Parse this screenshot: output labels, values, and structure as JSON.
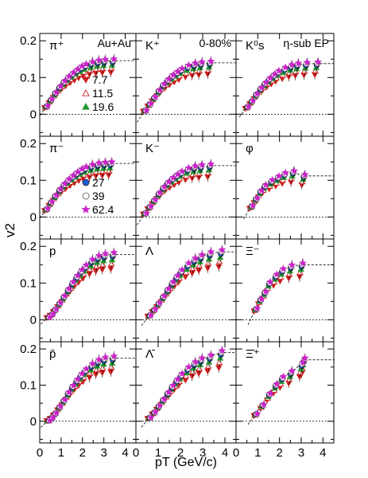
{
  "chart_data": {
    "type": "scatter",
    "ylabel": "v2",
    "xlabel": "pT (GeV/c)",
    "xlim": [
      0,
      4.5
    ],
    "ylim": [
      -0.06,
      0.22
    ],
    "x_ticks": [
      "0",
      "1",
      "2",
      "3",
      "4"
    ],
    "y_ticks": [
      "0",
      "0.1",
      "0.2"
    ],
    "top_labels": [
      "Au+Au",
      "0-80%",
      "η-sub EP"
    ],
    "grid": false,
    "legend_1": [
      "7.7",
      "11.5",
      "19.6"
    ],
    "legend_2": [
      "27",
      "39",
      "62.4"
    ],
    "energies": [
      {
        "name": "7.7",
        "marker": "tri-down",
        "color": "#cc1f1f",
        "fill": true,
        "scale": 0.78
      },
      {
        "name": "11.5",
        "marker": "tri-up",
        "color": "#cc1f1f",
        "fill": false,
        "scale": 0.86
      },
      {
        "name": "19.6",
        "marker": "tri-up",
        "color": "#1a9a2e",
        "fill": true,
        "scale": 0.92
      },
      {
        "name": "27",
        "marker": "circle",
        "color": "#1f5fd0",
        "fill": true,
        "scale": 0.97
      },
      {
        "name": "39",
        "marker": "circle",
        "color": "#555555",
        "fill": false,
        "scale": 1.0
      },
      {
        "name": "62.4",
        "marker": "star",
        "color": "#cc22cc",
        "fill": true,
        "scale": 1.03
      }
    ],
    "panels": [
      {
        "label": "π⁺",
        "pts": [
          [
            0.3,
            0.022
          ],
          [
            0.5,
            0.04
          ],
          [
            0.7,
            0.058
          ],
          [
            0.9,
            0.074
          ],
          [
            1.1,
            0.088
          ],
          [
            1.3,
            0.1
          ],
          [
            1.5,
            0.11
          ],
          [
            1.7,
            0.119
          ],
          [
            1.9,
            0.127
          ],
          [
            2.1,
            0.133
          ],
          [
            2.4,
            0.139
          ],
          [
            2.7,
            0.143
          ],
          [
            3.0,
            0.145
          ],
          [
            3.4,
            0.146
          ]
        ]
      },
      {
        "label": "K⁺",
        "pts": [
          [
            0.4,
            0.01
          ],
          [
            0.6,
            0.028
          ],
          [
            0.8,
            0.046
          ],
          [
            1.0,
            0.064
          ],
          [
            1.2,
            0.08
          ],
          [
            1.4,
            0.093
          ],
          [
            1.6,
            0.104
          ],
          [
            1.8,
            0.113
          ],
          [
            2.0,
            0.121
          ],
          [
            2.3,
            0.13
          ],
          [
            2.6,
            0.135
          ],
          [
            2.9,
            0.138
          ],
          [
            3.3,
            0.14
          ]
        ]
      },
      {
        "label": "K⁰s",
        "pts": [
          [
            0.5,
            0.02
          ],
          [
            0.7,
            0.036
          ],
          [
            0.9,
            0.054
          ],
          [
            1.1,
            0.07
          ],
          [
            1.3,
            0.084
          ],
          [
            1.5,
            0.096
          ],
          [
            1.7,
            0.106
          ],
          [
            1.9,
            0.115
          ],
          [
            2.2,
            0.124
          ],
          [
            2.5,
            0.131
          ],
          [
            2.8,
            0.135
          ],
          [
            3.2,
            0.137
          ],
          [
            3.7,
            0.138
          ]
        ]
      },
      {
        "label": "π⁻",
        "pts": [
          [
            0.3,
            0.022
          ],
          [
            0.5,
            0.04
          ],
          [
            0.7,
            0.058
          ],
          [
            0.9,
            0.074
          ],
          [
            1.1,
            0.088
          ],
          [
            1.3,
            0.1
          ],
          [
            1.5,
            0.11
          ],
          [
            1.7,
            0.119
          ],
          [
            1.9,
            0.127
          ],
          [
            2.1,
            0.133
          ],
          [
            2.4,
            0.139
          ],
          [
            2.7,
            0.143
          ],
          [
            3.0,
            0.145
          ],
          [
            3.3,
            0.146
          ]
        ]
      },
      {
        "label": "K⁻",
        "pts": [
          [
            0.4,
            0.01
          ],
          [
            0.6,
            0.028
          ],
          [
            0.8,
            0.046
          ],
          [
            1.0,
            0.064
          ],
          [
            1.2,
            0.08
          ],
          [
            1.4,
            0.093
          ],
          [
            1.6,
            0.104
          ],
          [
            1.8,
            0.113
          ],
          [
            2.0,
            0.121
          ],
          [
            2.3,
            0.13
          ],
          [
            2.6,
            0.135
          ],
          [
            2.9,
            0.138
          ],
          [
            3.3,
            0.14
          ]
        ]
      },
      {
        "label": "φ",
        "pts": [
          [
            0.7,
            0.03
          ],
          [
            0.9,
            0.05
          ],
          [
            1.1,
            0.07
          ],
          [
            1.3,
            0.085
          ],
          [
            1.6,
            0.098
          ],
          [
            1.9,
            0.108
          ],
          [
            2.2,
            0.117
          ],
          [
            2.6,
            0.122
          ],
          [
            3.1,
            0.112
          ]
        ]
      },
      {
        "label": "p",
        "pts": [
          [
            0.4,
            0.007
          ],
          [
            0.55,
            0.015
          ],
          [
            0.7,
            0.028
          ],
          [
            0.9,
            0.045
          ],
          [
            1.1,
            0.063
          ],
          [
            1.3,
            0.082
          ],
          [
            1.5,
            0.1
          ],
          [
            1.7,
            0.117
          ],
          [
            1.9,
            0.132
          ],
          [
            2.1,
            0.145
          ],
          [
            2.4,
            0.16
          ],
          [
            2.7,
            0.17
          ],
          [
            3.0,
            0.175
          ],
          [
            3.4,
            0.178
          ]
        ]
      },
      {
        "label": "Λ",
        "pts": [
          [
            0.6,
            0.012
          ],
          [
            0.8,
            0.028
          ],
          [
            1.0,
            0.045
          ],
          [
            1.2,
            0.063
          ],
          [
            1.4,
            0.082
          ],
          [
            1.6,
            0.1
          ],
          [
            1.8,
            0.117
          ],
          [
            2.0,
            0.132
          ],
          [
            2.3,
            0.15
          ],
          [
            2.6,
            0.163
          ],
          [
            2.9,
            0.172
          ],
          [
            3.3,
            0.18
          ],
          [
            3.8,
            0.185
          ]
        ]
      },
      {
        "label": "Ξ⁻",
        "pts": [
          [
            0.9,
            0.03
          ],
          [
            1.1,
            0.055
          ],
          [
            1.3,
            0.075
          ],
          [
            1.5,
            0.1
          ],
          [
            1.8,
            0.12
          ],
          [
            2.1,
            0.135
          ],
          [
            2.5,
            0.145
          ],
          [
            3.0,
            0.15
          ]
        ]
      },
      {
        "label": "p̄",
        "pts": [
          [
            0.4,
            0.002
          ],
          [
            0.55,
            0.01
          ],
          [
            0.7,
            0.022
          ],
          [
            0.9,
            0.04
          ],
          [
            1.1,
            0.058
          ],
          [
            1.3,
            0.078
          ],
          [
            1.5,
            0.096
          ],
          [
            1.7,
            0.113
          ],
          [
            1.9,
            0.128
          ],
          [
            2.1,
            0.141
          ],
          [
            2.4,
            0.155
          ],
          [
            2.7,
            0.166
          ],
          [
            3.0,
            0.172
          ],
          [
            3.4,
            0.175
          ]
        ]
      },
      {
        "label": "Λ̄",
        "pts": [
          [
            0.6,
            0.01
          ],
          [
            0.8,
            0.025
          ],
          [
            1.0,
            0.042
          ],
          [
            1.2,
            0.06
          ],
          [
            1.4,
            0.078
          ],
          [
            1.6,
            0.096
          ],
          [
            1.8,
            0.113
          ],
          [
            2.0,
            0.128
          ],
          [
            2.3,
            0.146
          ],
          [
            2.6,
            0.16
          ],
          [
            2.9,
            0.17
          ],
          [
            3.3,
            0.178
          ],
          [
            3.8,
            0.19
          ]
        ]
      },
      {
        "label": "Ξ̄⁺",
        "pts": [
          [
            0.9,
            0.02
          ],
          [
            1.2,
            0.045
          ],
          [
            1.5,
            0.075
          ],
          [
            1.8,
            0.1
          ],
          [
            2.1,
            0.12
          ],
          [
            2.5,
            0.135
          ],
          [
            3.0,
            0.158
          ],
          [
            3.1,
            0.17
          ]
        ]
      }
    ]
  }
}
